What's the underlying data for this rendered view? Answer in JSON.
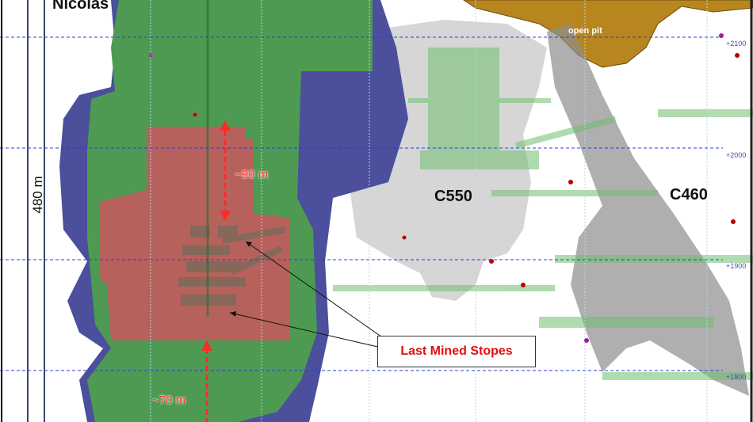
{
  "labels": {
    "deposit_left": "Nicolas",
    "deposit_mid": "C550",
    "deposit_right": "C460",
    "open_pit": "open pit",
    "scale": "480 m",
    "dim_upper": "~90 m",
    "dim_lower": "~70 m",
    "callout": "Last Mined Stopes"
  },
  "elevations": [
    "+2100",
    "+2000",
    "+1900",
    "+1800"
  ],
  "colors": {
    "outer_envelope": "#4b4f9c",
    "green_zone": "#4f9a52",
    "red_zone": "#b7615c",
    "orebody_grey": "#c9c9c9",
    "open_pit": "#b8861e",
    "grid_blue": "#2a3cd8",
    "annotation_red": "#ff2a2a"
  }
}
